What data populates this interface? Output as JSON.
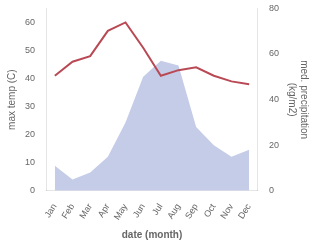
{
  "chart_data": {
    "type": "line",
    "xlabel": "date (month)",
    "ylabel": "max temp (C)",
    "y2label": "med. precipitation\n(kg/m2)",
    "categories": [
      "Jan",
      "Feb",
      "Mar",
      "Apr",
      "May",
      "Jun",
      "Jul",
      "Aug",
      "Sep",
      "Oct",
      "Nov",
      "Dec"
    ],
    "series": [
      {
        "type": "area",
        "color": "#c5cce8",
        "axis": "y2",
        "values": [
          11,
          5,
          8,
          15,
          30,
          50,
          57,
          55,
          28,
          20,
          15,
          18
        ]
      },
      {
        "type": "line",
        "color": "#b94a55",
        "values": [
          41,
          46,
          48,
          57,
          60,
          51,
          41,
          43,
          44,
          41,
          39,
          38
        ]
      }
    ],
    "ylim": [
      0,
      65
    ],
    "yticks": [
      0,
      10,
      20,
      30,
      40,
      50,
      60
    ],
    "y2lim": [
      0,
      80
    ],
    "y2ticks": [
      0,
      20,
      40,
      60,
      80
    ],
    "grid": false
  }
}
